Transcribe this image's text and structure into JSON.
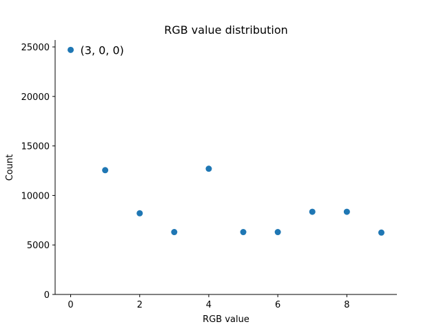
{
  "chart_data": {
    "type": "scatter",
    "title": "RGB value distribution",
    "xlabel": "RGB value",
    "ylabel": "Count",
    "xlim": [
      -0.45,
      9.45
    ],
    "ylim": [
      0,
      25700
    ],
    "xticks": [
      0,
      2,
      4,
      6,
      8
    ],
    "yticks": [
      0,
      5000,
      10000,
      15000,
      20000,
      25000
    ],
    "x": [
      0,
      1,
      2,
      3,
      4,
      5,
      6,
      7,
      8,
      9
    ],
    "y": [
      24700,
      12550,
      8200,
      6300,
      12700,
      6300,
      6300,
      8350,
      8350,
      6250
    ],
    "annotation": {
      "text": "(3, 0, 0)",
      "x": 0,
      "y": 24700
    },
    "color": "#1f77b4",
    "grid": false,
    "spines": [
      "left",
      "bottom"
    ]
  }
}
